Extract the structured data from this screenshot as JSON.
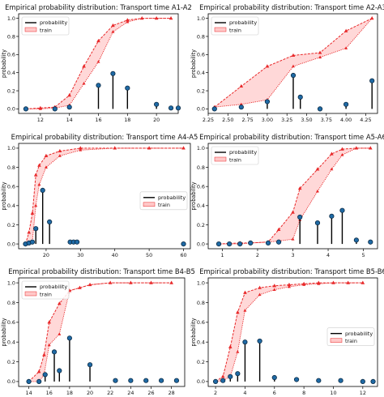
{
  "figure": {
    "name": "empirical probability distributions grid"
  },
  "colors": {
    "stem": "#000000",
    "marker_fill": "#1f6aa5",
    "marker_edge": "#0b2a44",
    "band_fill": "#ffc8c8",
    "band_edge": "#e8292a"
  },
  "chart_data": [
    {
      "type": "line",
      "title": "Empirical probability distribution: Transport time A1-A2",
      "xlabel": "",
      "ylabel": "probability",
      "xlim": [
        10.5,
        21.5
      ],
      "ylim": [
        -0.05,
        1.05
      ],
      "xticks": [
        12,
        14,
        16,
        18,
        20
      ],
      "yticks": [
        0.0,
        0.2,
        0.4,
        0.6,
        0.8,
        1.0
      ],
      "legend": {
        "position": "upper-left",
        "entries": [
          "probability",
          "train"
        ]
      },
      "probability": {
        "x": [
          11,
          13,
          14,
          16,
          17,
          18,
          20,
          21,
          21.5
        ],
        "y": [
          0.0,
          0.0,
          0.02,
          0.26,
          0.39,
          0.23,
          0.05,
          0.01,
          0.01
        ]
      },
      "train": {
        "x": [
          11,
          12,
          13,
          14,
          15,
          16,
          17,
          18,
          19,
          20,
          21
        ],
        "upper": [
          0.0,
          0.01,
          0.02,
          0.15,
          0.47,
          0.75,
          0.92,
          0.98,
          1.0,
          1.0,
          1.0
        ],
        "lower": [
          0.0,
          0.0,
          0.01,
          0.04,
          0.28,
          0.52,
          0.85,
          0.96,
          1.0,
          1.0,
          1.0
        ]
      }
    },
    {
      "type": "line",
      "title": "Empirical probability distribution: Transport time A2-A3",
      "xlabel": "",
      "ylabel": "probability",
      "xlim": [
        2.25,
        4.4
      ],
      "ylim": [
        -0.05,
        1.05
      ],
      "xticks": [
        2.25,
        2.5,
        2.75,
        3.0,
        3.25,
        3.5,
        3.75,
        4.0,
        4.25
      ],
      "xticklabels": [
        "2.25",
        "2.50",
        "2.75",
        "3.00",
        "3.25",
        "3.50",
        "3.75",
        "4.00",
        "4.25"
      ],
      "yticks": [
        0.0,
        0.2,
        0.4,
        0.6,
        0.8,
        1.0
      ],
      "legend": {
        "position": "upper-left",
        "entries": [
          "probability",
          "train"
        ]
      },
      "probability": {
        "x": [
          2.33,
          2.67,
          3.0,
          3.33,
          3.42,
          3.67,
          4.0,
          4.33
        ],
        "y": [
          0.0,
          0.02,
          0.08,
          0.37,
          0.13,
          0.0,
          0.05,
          0.31
        ]
      },
      "train": {
        "x": [
          2.33,
          2.67,
          3.0,
          3.33,
          3.67,
          4.0,
          4.33
        ],
        "upper": [
          0.02,
          0.25,
          0.47,
          0.59,
          0.62,
          0.86,
          1.0
        ],
        "lower": [
          0.02,
          0.05,
          0.1,
          0.47,
          0.57,
          0.67,
          1.0
        ]
      }
    },
    {
      "type": "line",
      "title": "Empirical probability distribution: Transport time A4-A5",
      "xlabel": "",
      "ylabel": "probability",
      "xlim": [
        12,
        62
      ],
      "ylim": [
        -0.05,
        1.05
      ],
      "xticks": [
        20,
        30,
        40,
        50,
        60
      ],
      "yticks": [
        0.0,
        0.2,
        0.4,
        0.6,
        0.8,
        1.0
      ],
      "legend": {
        "position": "center-right",
        "entries": [
          "probability",
          "train"
        ]
      },
      "probability": {
        "x": [
          14,
          15,
          16,
          17,
          19,
          21,
          27,
          28,
          29,
          60
        ],
        "y": [
          0.0,
          0.01,
          0.02,
          0.16,
          0.56,
          0.23,
          0.02,
          0.02,
          0.02,
          0.0
        ]
      },
      "train": {
        "x": [
          14,
          15,
          16,
          17,
          18,
          20,
          24,
          30,
          40,
          50,
          60
        ],
        "upper": [
          0.0,
          0.12,
          0.32,
          0.72,
          0.82,
          0.92,
          0.97,
          1.0,
          1.0,
          1.0,
          1.0
        ],
        "lower": [
          0.0,
          0.01,
          0.03,
          0.4,
          0.62,
          0.8,
          0.92,
          0.98,
          1.0,
          1.0,
          1.0
        ]
      }
    },
    {
      "type": "line",
      "title": "Empirical probability distribution: Transport time A5-A6",
      "xlabel": "",
      "ylabel": "probability",
      "xlim": [
        0.6,
        5.4
      ],
      "ylim": [
        -0.05,
        1.05
      ],
      "xticks": [
        1,
        2,
        3,
        4,
        5
      ],
      "yticks": [
        0.0,
        0.2,
        0.4,
        0.6,
        0.8,
        1.0
      ],
      "legend": {
        "position": "upper-left",
        "entries": [
          "probability",
          "train"
        ]
      },
      "probability": {
        "x": [
          0.9,
          1.2,
          1.5,
          1.8,
          2.3,
          2.6,
          3.2,
          3.7,
          4.1,
          4.4,
          4.8,
          5.2
        ],
        "y": [
          0.0,
          0.0,
          0.0,
          0.01,
          0.01,
          0.02,
          0.28,
          0.22,
          0.29,
          0.35,
          0.04,
          0.02
        ]
      },
      "train": {
        "x": [
          0.9,
          1.5,
          1.8,
          2.3,
          2.6,
          3.0,
          3.2,
          3.7,
          4.1,
          4.4,
          4.8,
          5.2
        ],
        "upper": [
          0.0,
          0.01,
          0.01,
          0.02,
          0.15,
          0.33,
          0.58,
          0.78,
          0.94,
          0.99,
          1.0,
          1.0
        ],
        "lower": [
          0.0,
          0.0,
          0.01,
          0.02,
          0.03,
          0.05,
          0.25,
          0.55,
          0.78,
          0.93,
          1.0,
          1.0
        ]
      }
    },
    {
      "type": "line",
      "title": "Empirical probability distribution: Transport time B4-B5",
      "xlabel": "",
      "ylabel": "probability",
      "xlim": [
        13,
        29.3
      ],
      "ylim": [
        -0.05,
        1.05
      ],
      "xticks": [
        14,
        16,
        18,
        20,
        22,
        24,
        26,
        28
      ],
      "yticks": [
        0.0,
        0.2,
        0.4,
        0.6,
        0.8,
        1.0
      ],
      "legend": {
        "position": "upper-left",
        "entries": [
          "probability",
          "train"
        ]
      },
      "probability": {
        "x": [
          14,
          15,
          15.6,
          16.5,
          17,
          18,
          20,
          22.5,
          24,
          25.5,
          27,
          28.5
        ],
        "y": [
          0.0,
          0.0,
          0.07,
          0.3,
          0.11,
          0.44,
          0.17,
          0.01,
          0.01,
          0.01,
          0.01,
          0.01
        ]
      },
      "train": {
        "x": [
          14,
          15,
          15.5,
          16,
          17,
          18,
          19,
          20,
          22,
          24,
          26,
          28
        ],
        "upper": [
          0.0,
          0.1,
          0.27,
          0.6,
          0.79,
          0.92,
          0.95,
          0.98,
          1.0,
          1.0,
          1.0,
          1.0
        ],
        "lower": [
          0.0,
          0.0,
          0.07,
          0.37,
          0.48,
          0.92,
          0.95,
          0.98,
          1.0,
          1.0,
          1.0,
          1.0
        ]
      }
    },
    {
      "type": "line",
      "title": "Empirical probability distribution: Transport time B5-B6",
      "xlabel": "",
      "ylabel": "probability",
      "xlim": [
        1.5,
        13
      ],
      "ylim": [
        -0.05,
        1.05
      ],
      "xticks": [
        2,
        4,
        6,
        8,
        10,
        12
      ],
      "yticks": [
        0.0,
        0.2,
        0.4,
        0.6,
        0.8,
        1.0
      ],
      "legend": {
        "position": "center-right",
        "entries": [
          "probability",
          "train"
        ]
      },
      "probability": {
        "x": [
          2,
          2.5,
          3,
          3.5,
          4,
          5,
          6,
          7.5,
          9,
          10.5,
          12,
          12.7
        ],
        "y": [
          0.0,
          0.01,
          0.05,
          0.08,
          0.4,
          0.41,
          0.04,
          0.02,
          0.01,
          0.01,
          0.0,
          0.0
        ]
      },
      "train": {
        "x": [
          2,
          2.5,
          3,
          3.5,
          4,
          5,
          6,
          7,
          8,
          9,
          10,
          11,
          12
        ],
        "upper": [
          0.0,
          0.05,
          0.35,
          0.7,
          0.9,
          0.95,
          0.97,
          0.98,
          0.99,
          1.0,
          1.0,
          1.0,
          1.0
        ],
        "lower": [
          0.0,
          0.01,
          0.05,
          0.3,
          0.72,
          0.88,
          0.93,
          0.96,
          0.98,
          0.99,
          1.0,
          1.0,
          1.0
        ]
      }
    }
  ]
}
